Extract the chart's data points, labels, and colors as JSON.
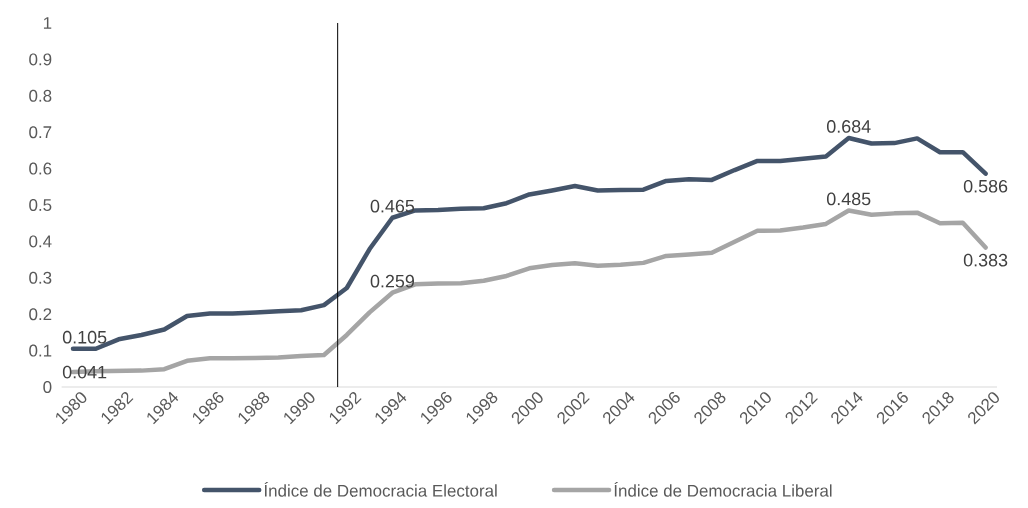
{
  "chart_data": {
    "type": "line",
    "x": [
      1980,
      1981,
      1982,
      1983,
      1984,
      1985,
      1986,
      1987,
      1988,
      1989,
      1990,
      1991,
      1992,
      1993,
      1994,
      1995,
      1996,
      1997,
      1998,
      1999,
      2000,
      2001,
      2002,
      2003,
      2004,
      2005,
      2006,
      2007,
      2008,
      2009,
      2010,
      2011,
      2012,
      2013,
      2014,
      2015,
      2016,
      2017,
      2018,
      2019,
      2020
    ],
    "series": [
      {
        "name": "Índice de Democracia Electoral",
        "color": "#44546a",
        "values": [
          0.105,
          0.105,
          0.131,
          0.143,
          0.158,
          0.195,
          0.202,
          0.202,
          0.205,
          0.208,
          0.211,
          0.225,
          0.272,
          0.379,
          0.465,
          0.485,
          0.486,
          0.49,
          0.491,
          0.505,
          0.529,
          0.54,
          0.552,
          0.54,
          0.541,
          0.542,
          0.566,
          0.571,
          0.569,
          0.596,
          0.621,
          0.621,
          0.627,
          0.633,
          0.684,
          0.669,
          0.67,
          0.683,
          0.645,
          0.645,
          0.586
        ],
        "value_labels": [
          "0.105",
          null,
          null,
          null,
          null,
          null,
          null,
          null,
          null,
          null,
          null,
          null,
          null,
          null,
          "0.465",
          null,
          null,
          null,
          null,
          null,
          null,
          null,
          null,
          null,
          null,
          null,
          null,
          null,
          null,
          null,
          null,
          null,
          null,
          null,
          "0.684",
          null,
          null,
          null,
          null,
          null,
          "0.586"
        ]
      },
      {
        "name": "Índice de Democracia Liberal",
        "color": "#a5a5a5",
        "values": [
          0.041,
          0.043,
          0.044,
          0.045,
          0.049,
          0.072,
          0.079,
          0.079,
          0.08,
          0.081,
          0.085,
          0.088,
          0.143,
          0.205,
          0.259,
          0.282,
          0.284,
          0.285,
          0.292,
          0.305,
          0.326,
          0.335,
          0.34,
          0.333,
          0.336,
          0.341,
          0.36,
          0.364,
          0.369,
          0.399,
          0.429,
          0.43,
          0.438,
          0.448,
          0.485,
          0.473,
          0.477,
          0.479,
          0.45,
          0.451,
          0.383
        ],
        "value_labels": [
          "0.041",
          null,
          null,
          null,
          null,
          null,
          null,
          null,
          null,
          null,
          null,
          null,
          null,
          null,
          "0.259",
          null,
          null,
          null,
          null,
          null,
          null,
          null,
          null,
          null,
          null,
          null,
          null,
          null,
          null,
          null,
          null,
          null,
          null,
          null,
          "0.485",
          null,
          null,
          null,
          null,
          null,
          "0.383"
        ]
      }
    ],
    "xlim": [
      1979.5,
      2020.5
    ],
    "xticks": [
      1980,
      1982,
      1984,
      1986,
      1988,
      1990,
      1992,
      1994,
      1996,
      1998,
      2000,
      2002,
      2004,
      2006,
      2008,
      2010,
      2012,
      2014,
      2016,
      2018,
      2020
    ],
    "ylim": [
      0,
      1
    ],
    "yticks": [
      0,
      0.1,
      0.2,
      0.3,
      0.4,
      0.5,
      0.6,
      0.7,
      0.8,
      0.9,
      1
    ],
    "ref_lines": [
      {
        "axis": "x",
        "value": 1991.6,
        "color": "#000000"
      }
    ],
    "legend": "bottom"
  }
}
